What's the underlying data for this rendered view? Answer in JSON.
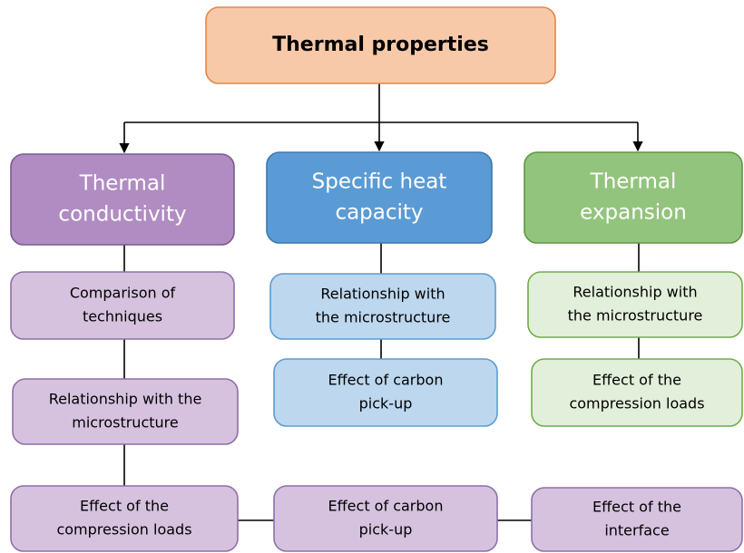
{
  "nodes": [
    {
      "lines": [
        "Thermal properties"
      ]
    },
    {
      "lines": [
        "Thermal",
        "conductivity"
      ]
    },
    {
      "lines": [
        "Specific heat",
        "capacity"
      ]
    },
    {
      "lines": [
        "Thermal",
        "expansion"
      ]
    },
    {
      "lines": [
        "Comparison of",
        "techniques"
      ]
    },
    {
      "lines": [
        "Relationship with the",
        "microstructure"
      ]
    },
    {
      "lines": [
        "Effect of the",
        "compression loads"
      ]
    },
    {
      "lines": [
        "Relationship with",
        "the microstructure"
      ]
    },
    {
      "lines": [
        "Effect of carbon",
        "pick-up"
      ]
    },
    {
      "lines": [
        "Relationship with",
        "the microstructure"
      ]
    },
    {
      "lines": [
        "Effect of the",
        "compression loads"
      ]
    },
    {
      "lines": [
        "Effect of carbon",
        "pick-up"
      ]
    },
    {
      "lines": [
        "Effect of the",
        "interface"
      ]
    }
  ]
}
